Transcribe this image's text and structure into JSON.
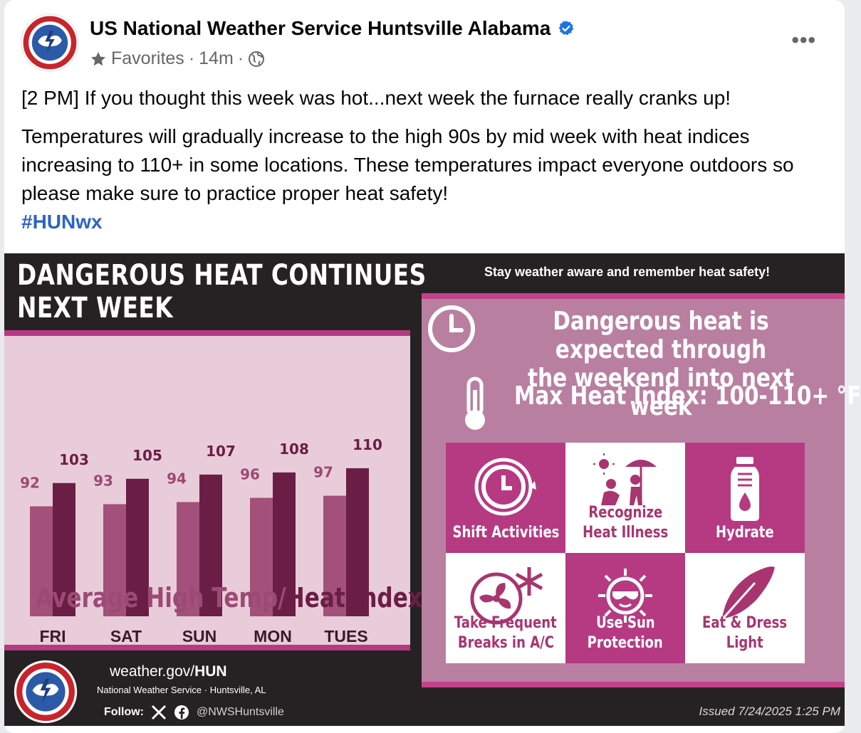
{
  "post": {
    "page_name": "US National Weather Service Huntsville Alabama",
    "favorites_label": "Favorites",
    "separator": "·",
    "time_ago": "14m",
    "text_line1": "[2 PM] If you thought this week was hot...next week the furnace really cranks up!",
    "text_line2": "Temperatures will gradually increase to the high 90s by mid week with heat indices increasing to 110+ in some locations. These temperatures impact everyone outdoors so please make sure to practice proper heat safety!",
    "hashtag": "#HUNwx",
    "icons": {
      "avatar": "nws-logo-icon",
      "verified": "verified-badge-icon",
      "favorites": "star-icon",
      "audience": "globe-icon",
      "more": "more-options-icon"
    }
  },
  "graphic": {
    "title_line1": "DANGEROUS HEAT CONTINUES",
    "title_line2": "NEXT WEEK",
    "tagline": "Stay weather aware and remember heat safety!",
    "message_line1": "Dangerous heat is expected through",
    "message_line2": "the weekend into next week",
    "max_heat": "Max Heat Index: 100-110+ °F",
    "legend_a": "Average High Temp",
    "legend_sep": "/",
    "legend_b": "Heat Index",
    "colors": {
      "temp_bar": "#a3507a",
      "heat_bar": "#6a1e45",
      "accent": "#b53a82"
    },
    "tiles": [
      {
        "line1": "Shift Activities",
        "line2": "",
        "icon": "clock-icon"
      },
      {
        "line1": "Recognize",
        "line2": "Heat Illness",
        "icon": "heat-illness-icon"
      },
      {
        "line1": "Hydrate",
        "line2": "",
        "icon": "water-bottle-icon"
      },
      {
        "line1": "Take Frequent",
        "line2": "Breaks in A/C",
        "icon": "fan-snowflake-icon"
      },
      {
        "line1": "Use Sun",
        "line2": "Protection",
        "icon": "sun-sunglasses-icon"
      },
      {
        "line1": "Eat & Dress",
        "line2": "Light",
        "icon": "feather-icon"
      }
    ],
    "footer": {
      "site_prefix": "weather.gov/",
      "site_bold": "HUN",
      "org": "National Weather Service · Huntsville, AL",
      "follow_label": "Follow:",
      "handle": "@NWSHuntsville",
      "issued": "Issued 7/24/2025 1:25 PM"
    }
  },
  "chart_data": {
    "type": "bar",
    "categories": [
      "FRI",
      "SAT",
      "SUN",
      "MON",
      "TUES"
    ],
    "series": [
      {
        "name": "Average High Temp",
        "values": [
          92,
          93,
          94,
          96,
          97
        ]
      },
      {
        "name": "Heat Index",
        "values": [
          103,
          105,
          107,
          108,
          110
        ]
      }
    ],
    "title": "",
    "xlabel": "",
    "ylabel": "",
    "legend": "bottom"
  }
}
